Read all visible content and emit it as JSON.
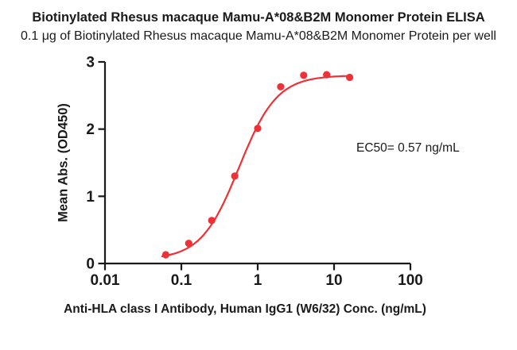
{
  "chart_data": {
    "type": "scatter",
    "title": "Biotinylated Rhesus macaque Mamu-A*08&B2M Monomer Protein ELISA",
    "subtitle": "0.1 μg of Biotinylated Rhesus macaque Mamu-A*08&B2M Monomer Protein per well",
    "xlabel": "Anti-HLA class I Antibody, Human IgG1 (W6/32) Conc. (ng/mL)",
    "ylabel": "Mean Abs. (OD450)",
    "annotation": "EC50= 0.57 ng/mL",
    "ec50_ng_ml": 0.57,
    "x_scale": "log10",
    "xlim": [
      0.01,
      100
    ],
    "ylim": [
      0,
      3
    ],
    "x_ticks": [
      "0.01",
      "0.1",
      "1",
      "10",
      "100"
    ],
    "x_tick_values": [
      0.01,
      0.1,
      1,
      10,
      100
    ],
    "y_ticks": [
      "0",
      "1",
      "2",
      "3"
    ],
    "y_tick_values": [
      0,
      1,
      2,
      3
    ],
    "grid": false,
    "legend": false,
    "axis_color": "#1a1a1a",
    "accent_color": "#ed3136",
    "series": [
      {
        "marker": "circle",
        "color": "#ed3136",
        "x": [
          0.0625,
          0.125,
          0.25,
          0.5,
          1,
          2,
          4,
          8,
          16
        ],
        "y": [
          0.13,
          0.3,
          0.64,
          1.3,
          2.01,
          2.63,
          2.8,
          2.81,
          2.77
        ]
      }
    ],
    "fit_curve": {
      "model": "4PL",
      "bottom": 0.06,
      "top": 2.8,
      "ec50": 0.57,
      "hill": 1.75,
      "x_range": [
        0.056,
        16.5
      ],
      "color": "#ed3136"
    }
  }
}
